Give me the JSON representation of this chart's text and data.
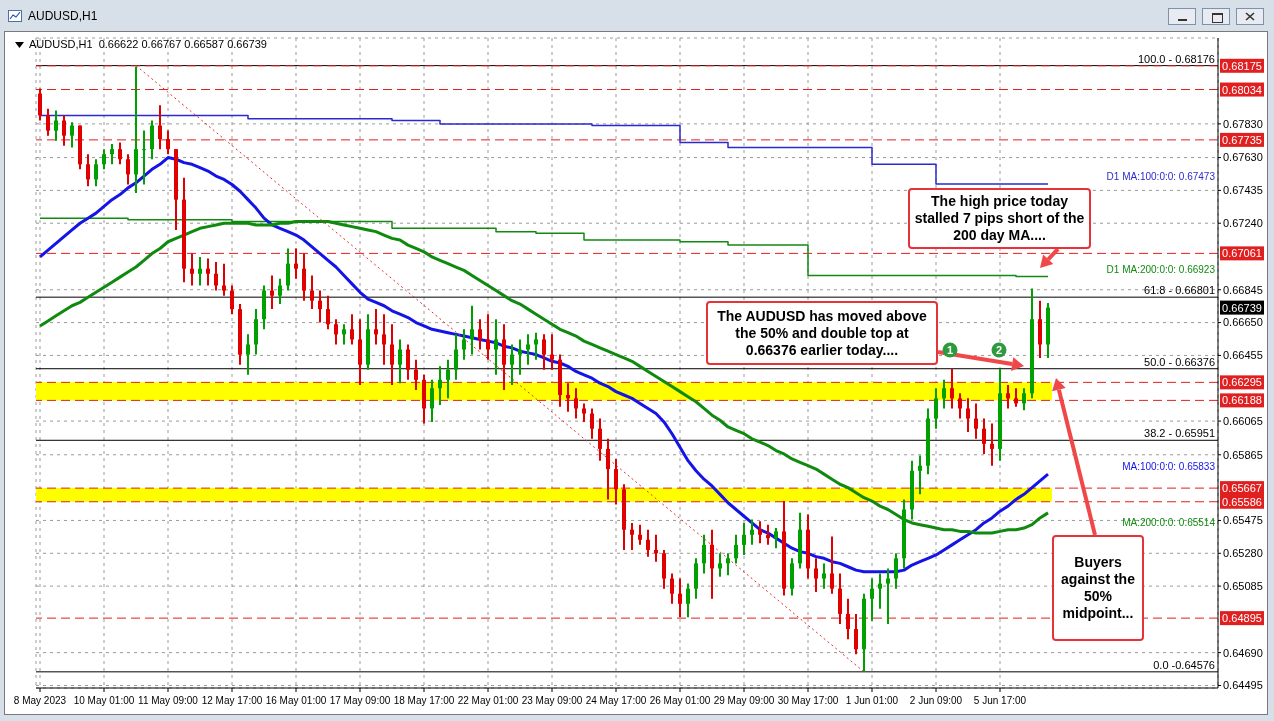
{
  "chart_data": {
    "type": "candlestick",
    "title": "AUDUSD,H1",
    "subtitle": "AUDUSD,H1  0.66622 0.66767 0.66587 0.66739",
    "categories": [
      "8 May 2023",
      null,
      null,
      null,
      null,
      null,
      null,
      null,
      "10 May 01:00",
      null,
      null,
      null,
      null,
      null,
      null,
      null,
      "11 May 09:00",
      null,
      null,
      null,
      null,
      null,
      null,
      null,
      "12 May 17:00",
      null,
      null,
      null,
      null,
      null,
      null,
      null,
      "16 May 01:00",
      null,
      null,
      null,
      null,
      null,
      null,
      null,
      "17 May 09:00",
      null,
      null,
      null,
      null,
      null,
      null,
      null,
      "18 May 17:00",
      null,
      null,
      null,
      null,
      null,
      null,
      null,
      "22 May 01:00",
      null,
      null,
      null,
      null,
      null,
      null,
      null,
      "23 May 09:00",
      null,
      null,
      null,
      null,
      null,
      null,
      null,
      "24 May 17:00",
      null,
      null,
      null,
      null,
      null,
      null,
      null,
      "26 May 01:00",
      null,
      null,
      null,
      null,
      null,
      null,
      null,
      "29 May 09:00",
      null,
      null,
      null,
      null,
      null,
      null,
      null,
      "30 May 17:00",
      null,
      null,
      null,
      null,
      null,
      null,
      null,
      "1 Jun 01:00",
      null,
      null,
      null,
      null,
      null,
      null,
      null,
      "2 Jun 09:00",
      null,
      null,
      null,
      null,
      null,
      null,
      null,
      "5 Jun 17:00",
      null,
      null,
      null,
      null,
      null,
      null
    ],
    "ohlc": [
      [
        0.6801,
        0.6804,
        0.6785,
        0.6788
      ],
      [
        0.6788,
        0.6792,
        0.6776,
        0.6779
      ],
      [
        0.6779,
        0.6791,
        0.6773,
        0.6785
      ],
      [
        0.6785,
        0.6788,
        0.677,
        0.6776
      ],
      [
        0.6776,
        0.6784,
        0.6769,
        0.6782
      ],
      [
        0.6782,
        0.6782,
        0.6756,
        0.6759
      ],
      [
        0.6759,
        0.6765,
        0.6746,
        0.675
      ],
      [
        0.675,
        0.6762,
        0.6746,
        0.6759
      ],
      [
        0.6759,
        0.6768,
        0.6756,
        0.6765
      ],
      [
        0.6765,
        0.6771,
        0.6759,
        0.6768
      ],
      [
        0.6768,
        0.6772,
        0.6759,
        0.6762
      ],
      [
        0.6762,
        0.6765,
        0.6747,
        0.6753
      ],
      [
        0.6753,
        0.6817,
        0.6742,
        0.6768
      ],
      [
        0.6768,
        0.6779,
        0.6747,
        0.6768
      ],
      [
        0.6768,
        0.6785,
        0.6762,
        0.6782
      ],
      [
        0.6782,
        0.6794,
        0.6768,
        0.6774
      ],
      [
        0.6774,
        0.6779,
        0.6765,
        0.6768
      ],
      [
        0.6768,
        0.6768,
        0.672,
        0.6738
      ],
      [
        0.6738,
        0.6751,
        0.6689,
        0.6697
      ],
      [
        0.6697,
        0.6706,
        0.6687,
        0.6694
      ],
      [
        0.6694,
        0.6704,
        0.6687,
        0.6697
      ],
      [
        0.6697,
        0.6703,
        0.6687,
        0.6694
      ],
      [
        0.6694,
        0.6701,
        0.6684,
        0.6687
      ],
      [
        0.6687,
        0.67,
        0.6681,
        0.6684
      ],
      [
        0.6684,
        0.6687,
        0.667,
        0.6673
      ],
      [
        0.6673,
        0.6676,
        0.664,
        0.6646
      ],
      [
        0.6646,
        0.6658,
        0.6634,
        0.6652
      ],
      [
        0.6652,
        0.6673,
        0.6646,
        0.6667
      ],
      [
        0.6667,
        0.6687,
        0.6661,
        0.6684
      ],
      [
        0.6684,
        0.6693,
        0.6673,
        0.6681
      ],
      [
        0.6681,
        0.6691,
        0.6676,
        0.6687
      ],
      [
        0.6687,
        0.6709,
        0.6684,
        0.67
      ],
      [
        0.67,
        0.6709,
        0.6691,
        0.6697
      ],
      [
        0.6697,
        0.6706,
        0.6678,
        0.6684
      ],
      [
        0.6684,
        0.6693,
        0.6673,
        0.6678
      ],
      [
        0.6678,
        0.6684,
        0.6665,
        0.6673
      ],
      [
        0.6673,
        0.6681,
        0.6661,
        0.6664
      ],
      [
        0.6664,
        0.6667,
        0.6652,
        0.6658
      ],
      [
        0.6658,
        0.6664,
        0.6652,
        0.6661
      ],
      [
        0.6661,
        0.667,
        0.6652,
        0.6655
      ],
      [
        0.6655,
        0.6667,
        0.6628,
        0.664
      ],
      [
        0.664,
        0.667,
        0.6637,
        0.6661
      ],
      [
        0.6661,
        0.6673,
        0.6652,
        0.6658
      ],
      [
        0.6658,
        0.667,
        0.664,
        0.6652
      ],
      [
        0.6652,
        0.6664,
        0.6628,
        0.664
      ],
      [
        0.664,
        0.6655,
        0.6629,
        0.6649
      ],
      [
        0.6649,
        0.6652,
        0.6631,
        0.6637
      ],
      [
        0.6637,
        0.6643,
        0.6625,
        0.6631
      ],
      [
        0.6631,
        0.6634,
        0.6605,
        0.6614
      ],
      [
        0.6614,
        0.6631,
        0.6606,
        0.6626
      ],
      [
        0.6626,
        0.6639,
        0.6616,
        0.6631
      ],
      [
        0.6631,
        0.6643,
        0.662,
        0.6637
      ],
      [
        0.6637,
        0.6658,
        0.6631,
        0.6649
      ],
      [
        0.6649,
        0.6661,
        0.6643,
        0.6655
      ],
      [
        0.6655,
        0.6675,
        0.6646,
        0.6661
      ],
      [
        0.6661,
        0.6667,
        0.6649,
        0.6655
      ],
      [
        0.6655,
        0.667,
        0.6643,
        0.6649
      ],
      [
        0.6649,
        0.6667,
        0.6634,
        0.6655
      ],
      [
        0.6655,
        0.6664,
        0.6625,
        0.664
      ],
      [
        0.664,
        0.6652,
        0.6628,
        0.6646
      ],
      [
        0.6646,
        0.6655,
        0.6634,
        0.6649
      ],
      [
        0.6649,
        0.6658,
        0.664,
        0.6652
      ],
      [
        0.6652,
        0.6659,
        0.6643,
        0.6655
      ],
      [
        0.6655,
        0.6658,
        0.6637,
        0.6646
      ],
      [
        0.6646,
        0.6658,
        0.6637,
        0.6643
      ],
      [
        0.6643,
        0.6646,
        0.6615,
        0.6622
      ],
      [
        0.6622,
        0.6629,
        0.6612,
        0.662
      ],
      [
        0.662,
        0.6626,
        0.6608,
        0.6614
      ],
      [
        0.6614,
        0.6617,
        0.6606,
        0.6611
      ],
      [
        0.6611,
        0.6614,
        0.6596,
        0.6602
      ],
      [
        0.6602,
        0.6608,
        0.6583,
        0.659
      ],
      [
        0.659,
        0.6596,
        0.656,
        0.6578
      ],
      [
        0.6578,
        0.6584,
        0.6557,
        0.6566
      ],
      [
        0.6566,
        0.6569,
        0.653,
        0.6542
      ],
      [
        0.6542,
        0.6546,
        0.653,
        0.6539
      ],
      [
        0.6539,
        0.6545,
        0.6533,
        0.6536
      ],
      [
        0.6536,
        0.6542,
        0.6526,
        0.653
      ],
      [
        0.653,
        0.6539,
        0.6523,
        0.6528
      ],
      [
        0.6528,
        0.653,
        0.6507,
        0.6513
      ],
      [
        0.6513,
        0.6516,
        0.6498,
        0.6504
      ],
      [
        0.6504,
        0.6513,
        0.649,
        0.6498
      ],
      [
        0.6498,
        0.651,
        0.649,
        0.6507
      ],
      [
        0.6507,
        0.6525,
        0.6501,
        0.6522
      ],
      [
        0.6522,
        0.6539,
        0.6516,
        0.6533
      ],
      [
        0.6533,
        0.6542,
        0.6501,
        0.6519
      ],
      [
        0.6519,
        0.6528,
        0.6514,
        0.6522
      ],
      [
        0.6522,
        0.6528,
        0.6515,
        0.6525
      ],
      [
        0.6525,
        0.6539,
        0.6522,
        0.6533
      ],
      [
        0.6533,
        0.6546,
        0.6527,
        0.6539
      ],
      [
        0.6539,
        0.6548,
        0.6533,
        0.6542
      ],
      [
        0.6542,
        0.6547,
        0.6534,
        0.6539
      ],
      [
        0.6539,
        0.6545,
        0.6533,
        0.6537
      ],
      [
        0.6537,
        0.6543,
        0.6531,
        0.6541
      ],
      [
        0.6541,
        0.6559,
        0.6503,
        0.6507
      ],
      [
        0.6507,
        0.6525,
        0.6503,
        0.6522
      ],
      [
        0.6522,
        0.6552,
        0.6519,
        0.6542
      ],
      [
        0.6542,
        0.6551,
        0.6513,
        0.6519
      ],
      [
        0.6519,
        0.6525,
        0.6505,
        0.6513
      ],
      [
        0.6513,
        0.6522,
        0.6507,
        0.6516
      ],
      [
        0.6516,
        0.6538,
        0.6504,
        0.6507
      ],
      [
        0.6507,
        0.6516,
        0.6486,
        0.6492
      ],
      [
        0.6492,
        0.6501,
        0.6477,
        0.6483
      ],
      [
        0.6483,
        0.6492,
        0.6468,
        0.6471
      ],
      [
        0.6471,
        0.6504,
        0.64576,
        0.6501
      ],
      [
        0.6501,
        0.6513,
        0.6488,
        0.6507
      ],
      [
        0.6507,
        0.6516,
        0.6495,
        0.651
      ],
      [
        0.651,
        0.6519,
        0.6486,
        0.6513
      ],
      [
        0.6513,
        0.6528,
        0.6507,
        0.6525
      ],
      [
        0.6525,
        0.656,
        0.6519,
        0.6554
      ],
      [
        0.6554,
        0.6583,
        0.6548,
        0.6577
      ],
      [
        0.6577,
        0.6586,
        0.6563,
        0.658
      ],
      [
        0.658,
        0.6614,
        0.6575,
        0.6608
      ],
      [
        0.6608,
        0.6626,
        0.6602,
        0.662
      ],
      [
        0.662,
        0.6631,
        0.6614,
        0.6626
      ],
      [
        0.6626,
        0.66376,
        0.6614,
        0.662
      ],
      [
        0.662,
        0.6623,
        0.6608,
        0.6614
      ],
      [
        0.6614,
        0.662,
        0.66,
        0.6608
      ],
      [
        0.6608,
        0.6617,
        0.6596,
        0.6602
      ],
      [
        0.6602,
        0.6608,
        0.6587,
        0.6593
      ],
      [
        0.6593,
        0.6605,
        0.658,
        0.659
      ],
      [
        0.659,
        0.66376,
        0.6583,
        0.6623
      ],
      [
        0.6623,
        0.6628,
        0.6614,
        0.662
      ],
      [
        0.662,
        0.6626,
        0.6615,
        0.6617
      ],
      [
        0.6617,
        0.6626,
        0.6613,
        0.6623
      ],
      [
        0.6623,
        0.66853,
        0.662,
        0.6667
      ],
      [
        0.6667,
        0.6678,
        0.6644,
        0.6652
      ],
      [
        0.6652,
        0.66767,
        0.6644,
        0.66739
      ]
    ],
    "series": [
      {
        "name": "D1 MA:100:0:0: 0.67473",
        "type": "step",
        "color": "#2a2ad0",
        "values": [
          0.6788,
          0.6788,
          0.6788,
          0.6788,
          0.6788,
          0.6788,
          0.6788,
          0.6788,
          0.6788,
          0.6788,
          0.6788,
          0.6788,
          0.6788,
          0.6788,
          0.6788,
          0.6788,
          0.6788,
          0.6788,
          0.6788,
          0.6788,
          0.6788,
          0.6788,
          0.6788,
          0.6788,
          0.6788,
          0.6788,
          0.6786,
          0.6786,
          0.6786,
          0.6786,
          0.6786,
          0.6786,
          0.6786,
          0.6786,
          0.6786,
          0.6786,
          0.6786,
          0.6786,
          0.6786,
          0.6786,
          0.6786,
          0.6786,
          0.6786,
          0.6786,
          0.6785,
          0.6785,
          0.6785,
          0.6785,
          0.6785,
          0.6785,
          0.6783,
          0.6783,
          0.6783,
          0.6783,
          0.6783,
          0.6783,
          0.6783,
          0.6783,
          0.6783,
          0.6783,
          0.6783,
          0.6783,
          0.6783,
          0.6783,
          0.6783,
          0.6783,
          0.6783,
          0.6783,
          0.6783,
          0.6782,
          0.6782,
          0.6782,
          0.6782,
          0.6782,
          0.6782,
          0.6782,
          0.6782,
          0.6782,
          0.6782,
          0.6782,
          0.6772,
          0.6772,
          0.6772,
          0.6772,
          0.6772,
          0.6772,
          0.6769,
          0.6769,
          0.6769,
          0.6769,
          0.6769,
          0.6769,
          0.6769,
          0.6769,
          0.6769,
          0.6769,
          0.6769,
          0.6769,
          0.6769,
          0.6769,
          0.6769,
          0.6769,
          0.6769,
          0.6769,
          0.6759,
          0.6759,
          0.6759,
          0.6759,
          0.6759,
          0.6759,
          0.6759,
          0.6759,
          0.67473,
          0.67473,
          0.67473,
          0.67473,
          0.67473,
          0.67473,
          0.67473,
          0.67473,
          0.67473,
          0.67473,
          0.67473,
          0.67473,
          0.67473,
          0.67473,
          0.67473
        ]
      },
      {
        "name": "D1 MA:200:0:0: 0.66923",
        "type": "step",
        "color": "#128a12",
        "values": [
          0.6727,
          0.6727,
          0.6727,
          0.6727,
          0.6727,
          0.6727,
          0.6727,
          0.6727,
          0.6727,
          0.6727,
          0.6727,
          0.6726,
          0.6726,
          0.6726,
          0.6726,
          0.6726,
          0.6726,
          0.6726,
          0.6726,
          0.6726,
          0.6726,
          0.6726,
          0.6726,
          0.6726,
          0.6725,
          0.6725,
          0.6725,
          0.6725,
          0.6725,
          0.6725,
          0.6725,
          0.6725,
          0.6725,
          0.6725,
          0.6725,
          0.6725,
          0.6725,
          0.6725,
          0.6725,
          0.6725,
          0.6725,
          0.6725,
          0.6725,
          0.6725,
          0.6721,
          0.6721,
          0.6721,
          0.6721,
          0.6721,
          0.6721,
          0.6721,
          0.6721,
          0.6721,
          0.6721,
          0.6721,
          0.6721,
          0.6721,
          0.6719,
          0.6719,
          0.6719,
          0.6719,
          0.6719,
          0.6718,
          0.6718,
          0.6718,
          0.6718,
          0.6718,
          0.6718,
          0.6714,
          0.6714,
          0.6714,
          0.6714,
          0.6714,
          0.6714,
          0.6714,
          0.6714,
          0.6714,
          0.6714,
          0.6714,
          0.6714,
          0.6713,
          0.6713,
          0.6713,
          0.6713,
          0.6713,
          0.6713,
          0.6711,
          0.6711,
          0.6711,
          0.6711,
          0.6711,
          0.6711,
          0.6711,
          0.6711,
          0.6711,
          0.6711,
          0.6693,
          0.6693,
          0.6693,
          0.6693,
          0.6693,
          0.6693,
          0.6693,
          0.6693,
          0.6693,
          0.6693,
          0.6693,
          0.6693,
          0.6693,
          0.6693,
          0.6693,
          0.6693,
          0.6693,
          0.6693,
          0.6693,
          0.6693,
          0.6693,
          0.6693,
          0.6693,
          0.6693,
          0.6693,
          0.6693,
          0.66923,
          0.66923,
          0.66923,
          0.66923,
          0.66923
        ]
      },
      {
        "name": "MA:100:0:0: 0.65833",
        "type": "line",
        "color": "#1414e6",
        "values": [
          0.6704,
          0.6708,
          0.6712,
          0.6716,
          0.672,
          0.6724,
          0.6727,
          0.673,
          0.6734,
          0.6738,
          0.6741,
          0.6745,
          0.6748,
          0.6752,
          0.6756,
          0.6759,
          0.6763,
          0.6762,
          0.676,
          0.6759,
          0.6757,
          0.6755,
          0.6752,
          0.675,
          0.6747,
          0.6743,
          0.6738,
          0.6733,
          0.6727,
          0.6723,
          0.6721,
          0.6719,
          0.6717,
          0.6714,
          0.671,
          0.6706,
          0.6702,
          0.6698,
          0.6693,
          0.6688,
          0.6683,
          0.6679,
          0.6677,
          0.6675,
          0.6672,
          0.667,
          0.6668,
          0.6665,
          0.6663,
          0.6661,
          0.666,
          0.6659,
          0.6658,
          0.6657,
          0.6656,
          0.6655,
          0.6654,
          0.6653,
          0.6651,
          0.665,
          0.6648,
          0.6647,
          0.6646,
          0.6644,
          0.6642,
          0.6641,
          0.6639,
          0.6636,
          0.6634,
          0.6632,
          0.6629,
          0.6627,
          0.6624,
          0.6622,
          0.662,
          0.6617,
          0.6614,
          0.6611,
          0.6606,
          0.6599,
          0.6591,
          0.6583,
          0.6577,
          0.6572,
          0.6568,
          0.6563,
          0.6558,
          0.6554,
          0.655,
          0.6546,
          0.6542,
          0.654,
          0.6537,
          0.6534,
          0.6531,
          0.6529,
          0.6528,
          0.6526,
          0.6525,
          0.6523,
          0.6522,
          0.652,
          0.6518,
          0.6517,
          0.6517,
          0.6517,
          0.6517,
          0.6517,
          0.6518,
          0.6521,
          0.6523,
          0.6525,
          0.6527,
          0.653,
          0.6533,
          0.6536,
          0.6539,
          0.6542,
          0.6546,
          0.6549,
          0.6553,
          0.6556,
          0.656,
          0.6563,
          0.6567,
          0.6571,
          0.6575
        ]
      },
      {
        "name": "MA:200:0:0: 0.65514",
        "type": "line",
        "color": "#0f8a0f",
        "values": [
          0.6663,
          0.6666,
          0.6669,
          0.6672,
          0.6675,
          0.6677,
          0.668,
          0.6683,
          0.6686,
          0.6689,
          0.6692,
          0.6695,
          0.6698,
          0.6702,
          0.6706,
          0.6709,
          0.6713,
          0.6715,
          0.6717,
          0.6719,
          0.6721,
          0.6722,
          0.6723,
          0.6724,
          0.6724,
          0.6724,
          0.6724,
          0.6723,
          0.6723,
          0.6723,
          0.6724,
          0.6724,
          0.6725,
          0.6725,
          0.6725,
          0.6725,
          0.6725,
          0.6724,
          0.6723,
          0.6722,
          0.6721,
          0.672,
          0.6719,
          0.6717,
          0.6715,
          0.6714,
          0.6711,
          0.6709,
          0.6707,
          0.6704,
          0.6702,
          0.67,
          0.6698,
          0.6696,
          0.6693,
          0.669,
          0.6687,
          0.6684,
          0.6681,
          0.6678,
          0.6676,
          0.6673,
          0.667,
          0.6667,
          0.6664,
          0.6661,
          0.6659,
          0.6657,
          0.6654,
          0.6652,
          0.665,
          0.6648,
          0.6646,
          0.6644,
          0.6642,
          0.6639,
          0.6636,
          0.6633,
          0.663,
          0.6627,
          0.6624,
          0.6621,
          0.6618,
          0.6614,
          0.661,
          0.6607,
          0.6603,
          0.6601,
          0.6599,
          0.6596,
          0.6594,
          0.6592,
          0.6589,
          0.6587,
          0.6584,
          0.6582,
          0.658,
          0.6578,
          0.6575,
          0.6572,
          0.6569,
          0.6567,
          0.6564,
          0.6561,
          0.6559,
          0.6556,
          0.6554,
          0.6551,
          0.6548,
          0.6546,
          0.6545,
          0.6544,
          0.6543,
          0.6542,
          0.6542,
          0.6541,
          0.6541,
          0.654,
          0.654,
          0.654,
          0.6541,
          0.6542,
          0.6542,
          0.6543,
          0.6545,
          0.6549,
          0.6552
        ]
      },
      {
        "type": "line",
        "color": "#e03030",
        "line_style": "dotted",
        "values": [
          null,
          null,
          null,
          null,
          null,
          null,
          null,
          null,
          null,
          null,
          null,
          null,
          0.68176,
          null,
          null,
          null,
          null,
          null,
          null,
          null,
          null,
          null,
          null,
          null,
          null,
          null,
          null,
          null,
          null,
          null,
          null,
          null,
          null,
          null,
          null,
          null,
          null,
          null,
          null,
          null,
          null,
          null,
          null,
          null,
          null,
          null,
          null,
          null,
          null,
          null,
          null,
          null,
          null,
          null,
          null,
          null,
          null,
          null,
          null,
          null,
          null,
          null,
          null,
          null,
          null,
          null,
          null,
          null,
          null,
          null,
          null,
          null,
          null,
          null,
          null,
          null,
          null,
          null,
          null,
          null,
          null,
          null,
          null,
          null,
          null,
          null,
          null,
          null,
          null,
          null,
          null,
          null,
          null,
          null,
          null,
          null,
          null,
          null,
          null,
          null,
          null,
          null,
          null,
          0.64576,
          null,
          null,
          null,
          null,
          null,
          null,
          null,
          null,
          null,
          null,
          null,
          null,
          null,
          null,
          null,
          null,
          null,
          null,
          null,
          null,
          null,
          null,
          null
        ]
      }
    ],
    "ylim": [
      0.6448,
      0.6834
    ],
    "yticks": [
      {
        "value": 0.6783,
        "label": "0.67830"
      },
      {
        "value": 0.6763,
        "label": "0.67630"
      },
      {
        "value": 0.67435,
        "label": "0.67435"
      },
      {
        "value": 0.6724,
        "label": "0.67240"
      },
      {
        "value": 0.66845,
        "label": "0.66845"
      },
      {
        "value": 0.6665,
        "label": "0.66650"
      },
      {
        "value": 0.66455,
        "label": "0.66455"
      },
      {
        "value": 0.66065,
        "label": "0.66065"
      },
      {
        "value": 0.65865,
        "label": "0.65865"
      },
      {
        "value": 0.65475,
        "label": "0.65475"
      },
      {
        "value": 0.6528,
        "label": "0.65280"
      },
      {
        "value": 0.65085,
        "label": "0.65085"
      },
      {
        "value": 0.6469,
        "label": "0.64690"
      },
      {
        "value": 0.64495,
        "label": "0.64495"
      }
    ],
    "grid": true,
    "bands": [
      {
        "axis": "y",
        "from": 0.66188,
        "to": 0.66295,
        "color": "#ffff00"
      },
      {
        "axis": "y",
        "from": 0.65586,
        "to": 0.65667,
        "color": "#ffff00"
      }
    ],
    "ref_lines": [
      {
        "axis": "y",
        "value": 0.68176,
        "color": "#000000",
        "line_style": "solid"
      },
      {
        "axis": "y",
        "value": 0.66801,
        "color": "#000000",
        "line_style": "solid"
      },
      {
        "axis": "y",
        "value": 0.66376,
        "color": "#000000",
        "line_style": "solid"
      },
      {
        "axis": "y",
        "value": 0.65951,
        "color": "#000000",
        "line_style": "solid"
      },
      {
        "axis": "y",
        "value": 0.64576,
        "color": "#000000",
        "line_style": "solid"
      },
      {
        "axis": "y",
        "value": 0.68175,
        "label": "0.68175",
        "color": "#e02020",
        "line_style": "dashed"
      },
      {
        "axis": "y",
        "value": 0.68034,
        "label": "0.68034",
        "color": "#e02020",
        "line_style": "dashed"
      },
      {
        "axis": "y",
        "value": 0.67735,
        "label": "0.67735",
        "color": "#e02020",
        "line_style": "dashed"
      },
      {
        "axis": "y",
        "value": 0.67061,
        "label": "0.67061",
        "color": "#e02020",
        "line_style": "dashed"
      },
      {
        "axis": "y",
        "value": 0.66295,
        "label": "0.66295",
        "color": "#e02020",
        "line_style": "dashed"
      },
      {
        "axis": "y",
        "value": 0.66188,
        "label": "0.66188",
        "color": "#e02020",
        "line_style": "dashed"
      },
      {
        "axis": "y",
        "value": 0.65667,
        "label": "0.65667",
        "color": "#e02020",
        "line_style": "dashed"
      },
      {
        "axis": "y",
        "value": 0.65586,
        "label": "0.65586",
        "color": "#e02020",
        "line_style": "dashed"
      },
      {
        "axis": "y",
        "value": 0.64895,
        "label": "0.64895",
        "color": "#e02020",
        "line_style": "dashed"
      }
    ],
    "annotations": [
      "The high price today stalled 7 pips short of the 200 day MA....",
      "The AUDUSD has moved above the 50% and double top at 0.66376 earlier today....",
      "Buyers against the 50% midpoint...",
      "1",
      "2",
      "0.66739",
      {
        "text": "100.0 - 0.68176",
        "y": 0.68176
      },
      {
        "text": "61.8 - 0.66801",
        "y": 0.66801
      },
      {
        "text": "50.0 - 0.66376",
        "y": 0.66376
      },
      {
        "text": "38.2 - 0.65951",
        "y": 0.65951
      },
      {
        "text": "0.0 -0.64576",
        "y": 0.64576
      }
    ]
  }
}
